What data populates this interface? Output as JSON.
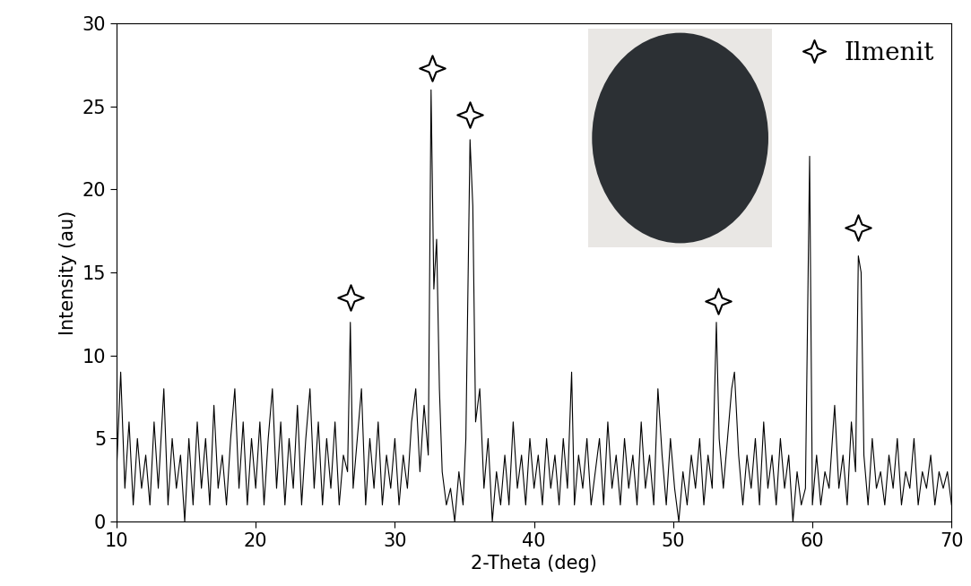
{
  "chart_data": {
    "type": "line",
    "x_label": "2-Theta (deg)",
    "y_label": "Intensity (au)",
    "xlim": [
      10,
      70
    ],
    "xticks": [
      10,
      20,
      30,
      40,
      50,
      60,
      70
    ],
    "ylim": [
      0,
      30
    ],
    "yticks": [
      0,
      5,
      10,
      15,
      20,
      25,
      30
    ],
    "legend": "upper right",
    "series": [
      {
        "name": null,
        "type": "line",
        "color": "#000000",
        "x": [
          10.0,
          10.3,
          10.6,
          10.9,
          11.2,
          11.5,
          11.8,
          12.1,
          12.4,
          12.7,
          13.0,
          13.4,
          13.7,
          14.0,
          14.3,
          14.6,
          14.9,
          15.2,
          15.5,
          15.8,
          16.1,
          16.4,
          16.7,
          17.0,
          17.3,
          17.6,
          17.9,
          18.2,
          18.5,
          18.8,
          19.1,
          19.4,
          19.7,
          20.0,
          20.3,
          20.6,
          20.9,
          21.2,
          21.5,
          21.8,
          22.1,
          22.4,
          22.7,
          23.0,
          23.3,
          23.6,
          23.9,
          24.2,
          24.5,
          24.8,
          25.1,
          25.4,
          25.7,
          26.0,
          26.3,
          26.6,
          26.8,
          27.0,
          27.3,
          27.6,
          27.9,
          28.2,
          28.5,
          28.8,
          29.1,
          29.4,
          29.7,
          30.0,
          30.3,
          30.6,
          30.9,
          31.2,
          31.5,
          31.8,
          32.1,
          32.4,
          32.6,
          32.8,
          33.0,
          33.2,
          33.4,
          33.7,
          34.0,
          34.3,
          34.6,
          34.9,
          35.1,
          35.4,
          35.6,
          35.8,
          36.1,
          36.4,
          36.7,
          37.0,
          37.3,
          37.6,
          37.9,
          38.2,
          38.5,
          38.8,
          39.1,
          39.4,
          39.7,
          40.0,
          40.3,
          40.6,
          40.9,
          41.2,
          41.5,
          41.8,
          42.1,
          42.4,
          42.7,
          42.9,
          43.2,
          43.5,
          43.8,
          44.1,
          44.4,
          44.7,
          45.0,
          45.3,
          45.6,
          45.9,
          46.2,
          46.5,
          46.8,
          47.1,
          47.4,
          47.7,
          48.0,
          48.3,
          48.6,
          48.9,
          49.2,
          49.5,
          49.8,
          50.1,
          50.4,
          50.7,
          51.0,
          51.3,
          51.6,
          51.9,
          52.2,
          52.5,
          52.8,
          53.1,
          53.3,
          53.6,
          53.9,
          54.2,
          54.4,
          54.7,
          55.0,
          55.3,
          55.6,
          55.9,
          56.2,
          56.5,
          56.8,
          57.1,
          57.4,
          57.7,
          58.0,
          58.3,
          58.6,
          58.9,
          59.2,
          59.5,
          59.8,
          60.0,
          60.3,
          60.6,
          60.9,
          61.2,
          61.6,
          61.9,
          62.2,
          62.5,
          62.8,
          63.1,
          63.3,
          63.5,
          63.7,
          64.0,
          64.3,
          64.6,
          64.9,
          65.2,
          65.5,
          65.8,
          66.1,
          66.4,
          66.7,
          67.0,
          67.3,
          67.6,
          67.9,
          68.2,
          68.5,
          68.8,
          69.1,
          69.4,
          69.7,
          70.0
        ],
        "values": [
          3,
          9,
          2,
          6,
          1,
          5,
          2,
          4,
          1,
          6,
          2,
          8,
          1,
          5,
          2,
          4,
          0,
          5,
          1,
          6,
          2,
          5,
          1,
          7,
          2,
          4,
          1,
          5,
          8,
          2,
          6,
          1,
          5,
          2,
          6,
          1,
          5,
          8,
          2,
          6,
          1,
          5,
          2,
          7,
          1,
          5,
          8,
          2,
          6,
          1,
          5,
          2,
          6,
          1,
          4,
          3,
          12,
          2,
          5,
          8,
          1,
          5,
          2,
          6,
          1,
          4,
          2,
          5,
          1,
          4,
          2,
          6,
          8,
          3,
          7,
          4,
          26,
          14,
          17,
          8,
          3,
          1,
          2,
          0,
          3,
          1,
          5,
          23,
          19,
          6,
          8,
          2,
          5,
          0,
          3,
          1,
          4,
          1,
          6,
          2,
          4,
          1,
          5,
          2,
          4,
          1,
          5,
          2,
          4,
          1,
          5,
          2,
          9,
          1,
          4,
          2,
          5,
          1,
          3,
          5,
          1,
          6,
          2,
          4,
          1,
          5,
          2,
          4,
          1,
          6,
          2,
          4,
          1,
          8,
          4,
          1,
          5,
          2,
          0,
          3,
          1,
          4,
          2,
          5,
          1,
          4,
          2,
          12,
          5,
          2,
          5,
          8,
          9,
          4,
          1,
          4,
          2,
          5,
          1,
          6,
          2,
          4,
          1,
          5,
          2,
          4,
          0,
          3,
          1,
          2,
          22,
          1,
          4,
          1,
          3,
          2,
          7,
          2,
          4,
          1,
          6,
          3,
          16,
          15,
          4,
          1,
          5,
          2,
          3,
          1,
          4,
          2,
          5,
          1,
          3,
          2,
          5,
          1,
          3,
          2,
          4,
          1,
          3,
          2,
          3,
          1
        ]
      },
      {
        "name": "Ilmenit",
        "type": "scatter",
        "marker": "star",
        "color": "#ffffff",
        "x": [
          26.8,
          32.7,
          35.4,
          53.2,
          63.3
        ],
        "values": [
          13.5,
          27.3,
          24.5,
          13.3,
          17.7
        ]
      }
    ]
  }
}
